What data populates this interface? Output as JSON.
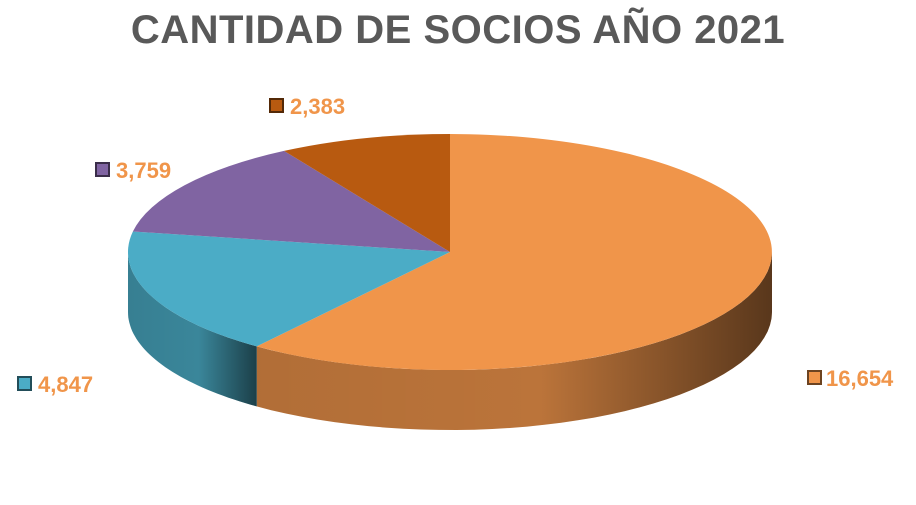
{
  "chart_data": {
    "type": "pie",
    "title": "CANTIDAD DE SOCIOS AÑO 2021",
    "values": [
      16654,
      4847,
      3759,
      2383
    ],
    "labels": [
      "16,654",
      "4,847",
      "3,759",
      "2,383"
    ],
    "colors": [
      "#f0954a",
      "#4bacc6",
      "#8064a2",
      "#b85a10"
    ],
    "legend": "none"
  }
}
